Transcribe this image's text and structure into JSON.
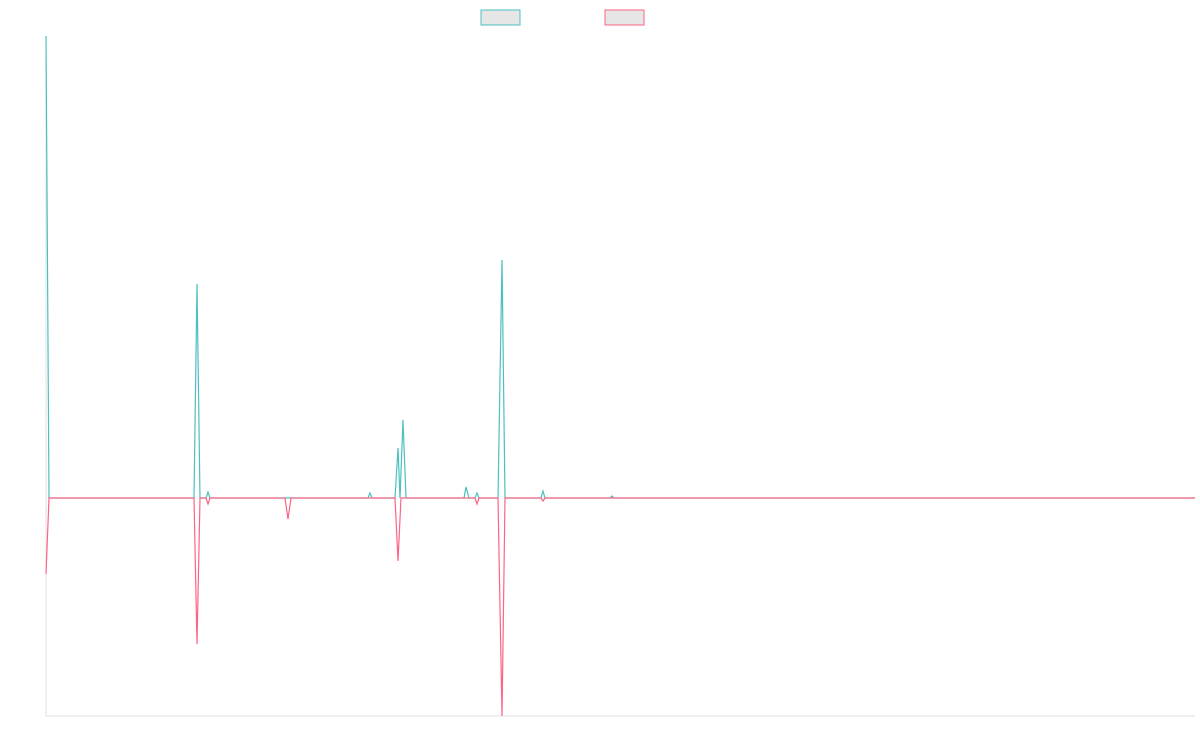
{
  "chart_data": {
    "type": "line",
    "x": [
      0,
      3,
      148,
      151,
      154,
      160,
      162,
      164,
      239,
      242,
      245,
      322,
      324,
      326,
      349,
      352,
      354,
      355,
      357,
      360,
      418,
      420,
      423,
      429,
      431,
      433,
      452,
      456,
      459,
      495,
      497,
      499,
      564,
      566,
      568,
      1149
    ],
    "xlim": [
      0,
      1149
    ],
    "ylim": [
      -218,
      462
    ],
    "series": [
      {
        "color": "#4bc0c0",
        "values": [
          462,
          0,
          0,
          214,
          0,
          0,
          6,
          0,
          0,
          0,
          0,
          0,
          5,
          0,
          0,
          50,
          0,
          26,
          78,
          0,
          0,
          11,
          0,
          0,
          5,
          0,
          0,
          238,
          0,
          0,
          7,
          0,
          0,
          2,
          0,
          0
        ]
      },
      {
        "color": "#ff6384",
        "values": [
          -76,
          0,
          0,
          -146,
          0,
          0,
          -6,
          0,
          0,
          -21,
          0,
          0,
          0,
          0,
          0,
          -63,
          -21,
          0,
          0,
          0,
          0,
          0,
          0,
          0,
          -6,
          0,
          0,
          -218,
          0,
          0,
          -3,
          0,
          0,
          0,
          0,
          0
        ]
      }
    ]
  }
}
